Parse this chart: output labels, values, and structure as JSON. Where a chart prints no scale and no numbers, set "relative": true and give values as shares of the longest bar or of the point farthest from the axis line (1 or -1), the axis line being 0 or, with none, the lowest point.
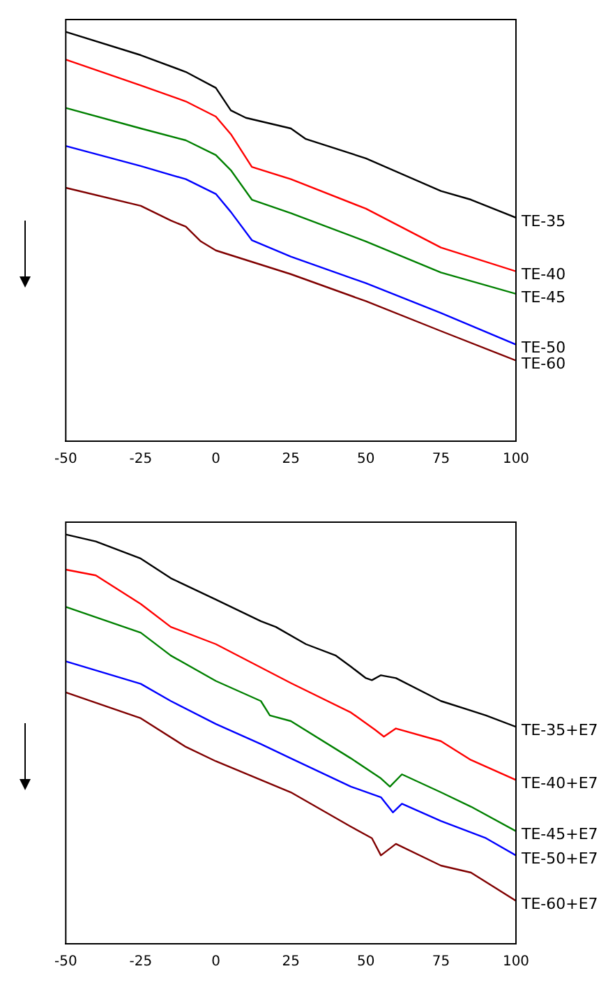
{
  "chart_data": [
    {
      "type": "line",
      "relative": true,
      "xlim": [
        -50,
        100
      ],
      "xticks": [
        -50,
        -25,
        0,
        25,
        50,
        75,
        100
      ],
      "tick_labels": "x",
      "grid": false,
      "legend": false,
      "marker": "none",
      "line_style": "solid",
      "series": [
        {
          "name": "TE-35",
          "color": "#000000",
          "x": [
            -50,
            -25,
            -10,
            0,
            5,
            10,
            25,
            30,
            50,
            75,
            85,
            100
          ],
          "values": [
            1.0,
            0.943,
            0.902,
            0.863,
            0.808,
            0.79,
            0.764,
            0.738,
            0.691,
            0.611,
            0.59,
            0.546
          ]
        },
        {
          "name": "TE-40",
          "color": "#ff0000",
          "x": [
            -50,
            -25,
            -10,
            0,
            5,
            12,
            25,
            50,
            75,
            100
          ],
          "values": [
            0.932,
            0.869,
            0.83,
            0.793,
            0.75,
            0.67,
            0.64,
            0.568,
            0.473,
            0.415
          ]
        },
        {
          "name": "TE-45",
          "color": "#008000",
          "x": [
            -50,
            -25,
            -10,
            0,
            5,
            12,
            25,
            50,
            75,
            100
          ],
          "values": [
            0.814,
            0.764,
            0.735,
            0.699,
            0.662,
            0.59,
            0.557,
            0.488,
            0.412,
            0.36
          ]
        },
        {
          "name": "TE-50",
          "color": "#0000ff",
          "x": [
            -50,
            -25,
            -10,
            0,
            5,
            12,
            25,
            50,
            75,
            100
          ],
          "values": [
            0.721,
            0.672,
            0.64,
            0.604,
            0.56,
            0.491,
            0.451,
            0.386,
            0.313,
            0.236
          ]
        },
        {
          "name": "TE-60",
          "color": "#800000",
          "x": [
            -50,
            -25,
            -15,
            -10,
            -5,
            0,
            25,
            50,
            75,
            100
          ],
          "values": [
            0.619,
            0.575,
            0.539,
            0.524,
            0.488,
            0.466,
            0.408,
            0.342,
            0.269,
            0.197
          ]
        }
      ]
    },
    {
      "type": "line",
      "relative": true,
      "xlim": [
        -50,
        100
      ],
      "xticks": [
        -50,
        -25,
        0,
        25,
        50,
        75,
        100
      ],
      "tick_labels": "x",
      "grid": false,
      "legend": false,
      "marker": "none",
      "line_style": "solid",
      "series": [
        {
          "name": "TE-35+E7",
          "color": "#000000",
          "x": [
            -50,
            -40,
            -25,
            -15,
            0,
            15,
            20,
            30,
            40,
            45,
            50,
            52,
            55,
            60,
            75,
            90,
            100
          ],
          "values": [
            1.0,
            0.983,
            0.941,
            0.893,
            0.841,
            0.788,
            0.774,
            0.732,
            0.704,
            0.677,
            0.649,
            0.644,
            0.656,
            0.649,
            0.593,
            0.558,
            0.53
          ]
        },
        {
          "name": "TE-40+E7",
          "color": "#ff0000",
          "x": [
            -50,
            -40,
            -25,
            -15,
            0,
            25,
            45,
            53,
            56,
            60,
            75,
            85,
            100
          ],
          "values": [
            0.914,
            0.9,
            0.83,
            0.774,
            0.732,
            0.637,
            0.565,
            0.523,
            0.506,
            0.526,
            0.495,
            0.449,
            0.4
          ]
        },
        {
          "name": "TE-45+E7",
          "color": "#008000",
          "x": [
            -50,
            -25,
            -15,
            0,
            15,
            18,
            25,
            45,
            55,
            58,
            62,
            75,
            85,
            100
          ],
          "values": [
            0.823,
            0.76,
            0.704,
            0.642,
            0.593,
            0.558,
            0.544,
            0.453,
            0.404,
            0.384,
            0.414,
            0.37,
            0.335,
            0.275
          ]
        },
        {
          "name": "TE-50+E7",
          "color": "#0000ff",
          "x": [
            -50,
            -25,
            -15,
            0,
            15,
            25,
            45,
            55,
            59,
            62,
            75,
            90,
            100
          ],
          "values": [
            0.69,
            0.635,
            0.593,
            0.537,
            0.488,
            0.453,
            0.384,
            0.358,
            0.321,
            0.342,
            0.3,
            0.258,
            0.216
          ]
        },
        {
          "name": "TE-60+E7",
          "color": "#800000",
          "x": [
            -50,
            -25,
            -10,
            0,
            25,
            45,
            52,
            55,
            60,
            75,
            85,
            100
          ],
          "values": [
            0.614,
            0.551,
            0.481,
            0.446,
            0.37,
            0.286,
            0.258,
            0.216,
            0.244,
            0.191,
            0.174,
            0.105
          ]
        }
      ]
    }
  ]
}
